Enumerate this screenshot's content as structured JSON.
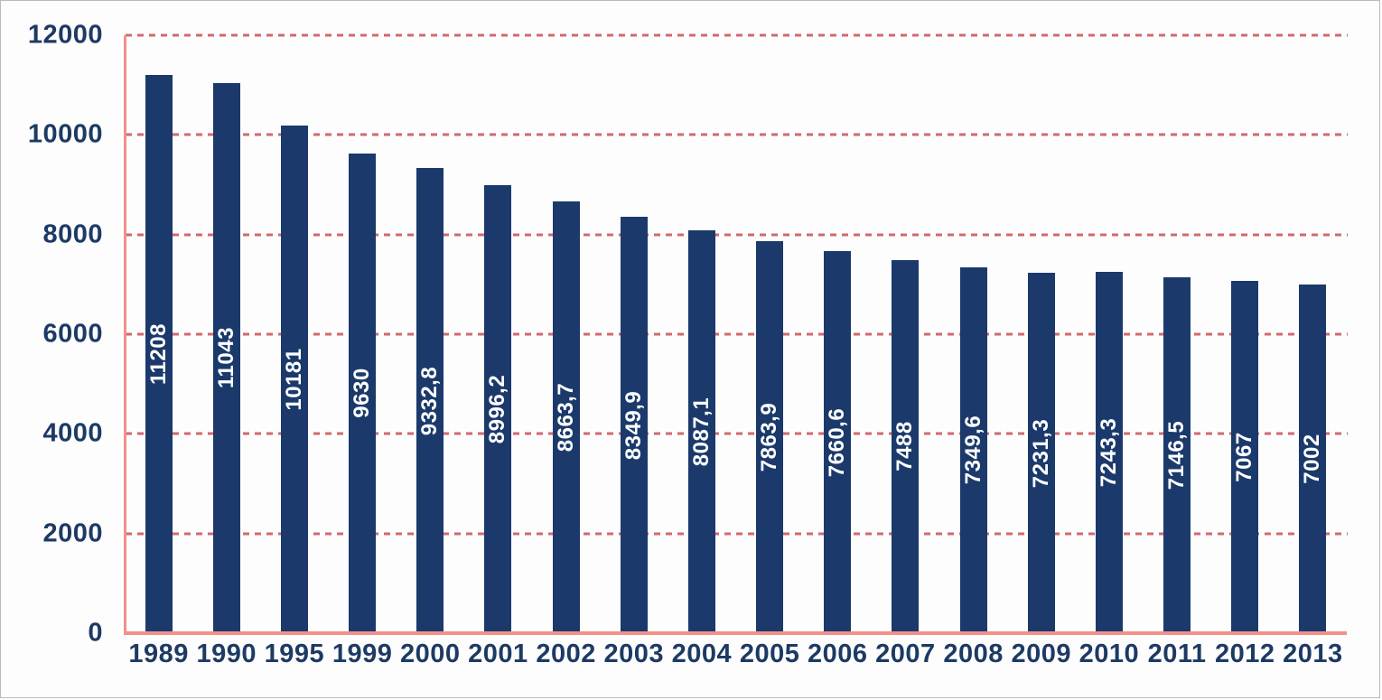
{
  "chart_data": {
    "type": "bar",
    "title": "",
    "xlabel": "",
    "ylabel": "",
    "categories": [
      "1989",
      "1990",
      "1995",
      "1999",
      "2000",
      "2001",
      "2002",
      "2003",
      "2004",
      "2005",
      "2006",
      "2007",
      "2008",
      "2009",
      "2010",
      "2011",
      "2012",
      "2013"
    ],
    "values": [
      11208,
      11043,
      10181,
      9630,
      9332.8,
      8996.2,
      8663.7,
      8349.9,
      8087.1,
      7863.9,
      7660.6,
      7488,
      7349.6,
      7231.3,
      7243.3,
      7146.5,
      7067,
      7002
    ],
    "value_labels": [
      "11208",
      "11043",
      "10181",
      "9630",
      "9332,8",
      "8996,2",
      "8663,7",
      "8349,9",
      "8087,1",
      "7863,9",
      "7660,6",
      "7488",
      "7349,6",
      "7231,3",
      "7243,3",
      "7146,5",
      "7067",
      "7002"
    ],
    "y_ticks": [
      0,
      2000,
      4000,
      6000,
      8000,
      10000,
      12000
    ],
    "y_tick_labels": [
      "0",
      "2000",
      "4000",
      "6000",
      "8000",
      "10000",
      "12000"
    ],
    "ylim": [
      0,
      12000
    ],
    "grid": "horizontal-dashed",
    "legend": "none",
    "colors": {
      "bar": "#1b3a6b",
      "bar_label": "#ffffff",
      "axis_line": "#f29089",
      "gridline": "#d0696e",
      "tick_label": "#1d3a64",
      "background": "#fdfdfe",
      "frame_border": "#b9babd"
    }
  }
}
